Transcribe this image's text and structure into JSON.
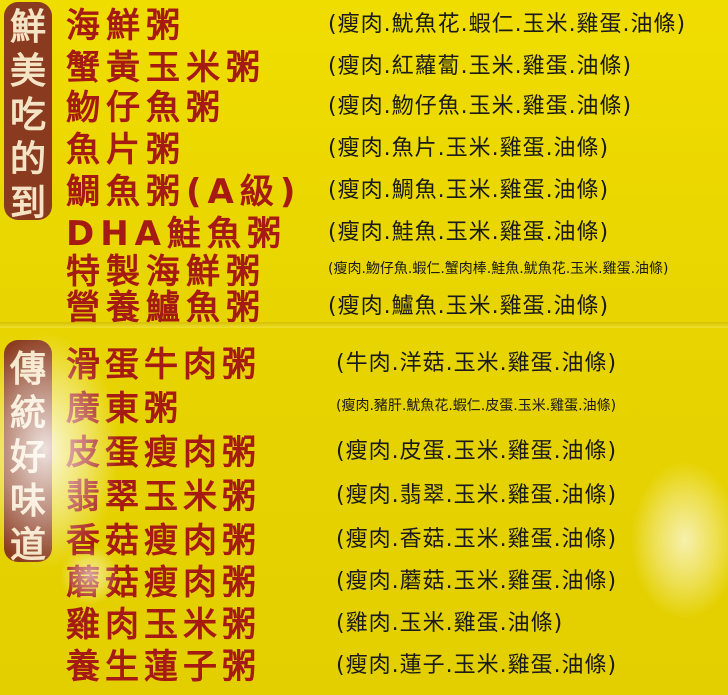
{
  "section1": {
    "tag": [
      "鮮",
      "美",
      "吃",
      "的",
      "到"
    ],
    "items": [
      {
        "name": "海鮮粥",
        "desc": "(瘦肉.魷魚花.蝦仁.玉米.雞蛋.油條)"
      },
      {
        "name": "蟹黃玉米粥",
        "desc": "(瘦肉.紅蘿蔔.玉米.雞蛋.油條)"
      },
      {
        "name": "魩仔魚粥",
        "desc": "(瘦肉.魩仔魚.玉米.雞蛋.油條)"
      },
      {
        "name": "魚片粥",
        "desc": "(瘦肉.魚片.玉米.雞蛋.油條)"
      },
      {
        "name": "鯛魚粥(A級)",
        "desc": "(瘦肉.鯛魚.玉米.雞蛋.油條)"
      },
      {
        "name": "DHA鮭魚粥",
        "desc": "(瘦肉.鮭魚.玉米.雞蛋.油條)"
      },
      {
        "name": "特製海鮮粥",
        "desc": "(瘦肉.魩仔魚.蝦仁.蟹肉棒.鮭魚.魷魚花.玉米.雞蛋.油條)"
      },
      {
        "name": "營養鱸魚粥",
        "desc": "(瘦肉.鱸魚.玉米.雞蛋.油條)"
      }
    ]
  },
  "section2": {
    "tag": [
      "傳",
      "統",
      "好",
      "味",
      "道"
    ],
    "items": [
      {
        "name": "滑蛋牛肉粥",
        "desc": "(牛肉.洋菇.玉米.雞蛋.油條)"
      },
      {
        "name": "廣東粥",
        "desc": "(瘦肉.豬肝.魷魚花.蝦仁.皮蛋.玉米.雞蛋.油條)"
      },
      {
        "name": "皮蛋瘦肉粥",
        "desc": "(瘦肉.皮蛋.玉米.雞蛋.油條)"
      },
      {
        "name": "翡翠玉米粥",
        "desc": "(瘦肉.翡翠.玉米.雞蛋.油條)"
      },
      {
        "name": "香菇瘦肉粥",
        "desc": "(瘦肉.香菇.玉米.雞蛋.油條)"
      },
      {
        "name": "蘑菇瘦肉粥",
        "desc": "(瘦肉.蘑菇.玉米.雞蛋.油條)"
      },
      {
        "name": "雞肉玉米粥",
        "desc": "(雞肉.玉米.雞蛋.油條)"
      },
      {
        "name": "養生蓮子粥",
        "desc": "(瘦肉.蓮子.玉米.雞蛋.油條)"
      }
    ]
  }
}
